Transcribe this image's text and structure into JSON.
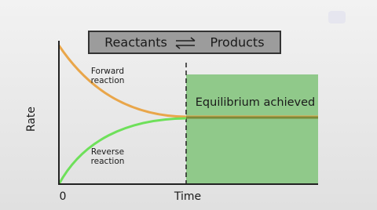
{
  "header": {
    "left": "Reactants",
    "right": "Products"
  },
  "labels": {
    "forward": [
      "Forward",
      "reaction"
    ],
    "reverse": [
      "Reverse",
      "reaction"
    ],
    "equilibrium": "Equilibrium achieved"
  },
  "axes": {
    "y": "Rate",
    "origin": "0",
    "x": "Time"
  }
}
